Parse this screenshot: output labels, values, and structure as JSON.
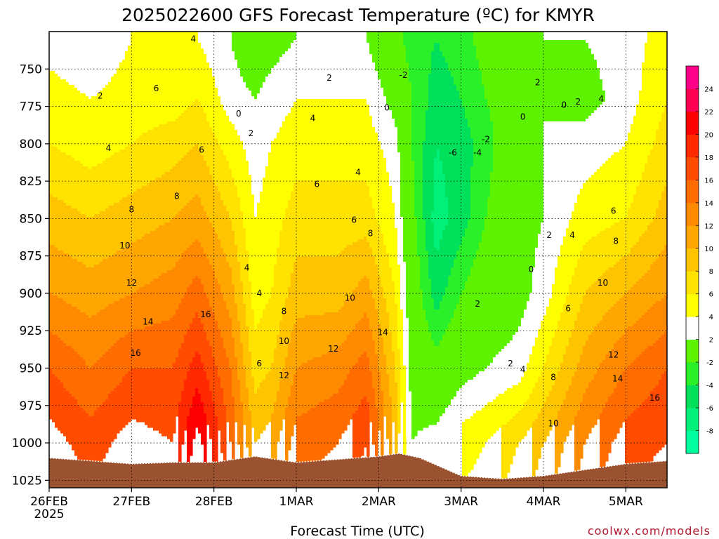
{
  "chart_data": {
    "type": "heatmap",
    "title": "2025022600 GFS Forecast Temperature (ºC) for KMYR",
    "xlabel": "Forecast Time (UTC)",
    "ylabel": "",
    "credit": "coolwx.com/models",
    "x_ticks": [
      {
        "label": "26FEB",
        "sub": "2025",
        "day": 0
      },
      {
        "label": "27FEB",
        "sub": "",
        "day": 1
      },
      {
        "label": "28FEB",
        "sub": "",
        "day": 2
      },
      {
        "label": "1MAR",
        "sub": "",
        "day": 3
      },
      {
        "label": "2MAR",
        "sub": "",
        "day": 4
      },
      {
        "label": "3MAR",
        "sub": "",
        "day": 5
      },
      {
        "label": "4MAR",
        "sub": "",
        "day": 6
      },
      {
        "label": "5MAR",
        "sub": "",
        "day": 7
      }
    ],
    "xlim": [
      0,
      7.5
    ],
    "y_ticks": [
      750,
      775,
      800,
      825,
      850,
      875,
      900,
      925,
      950,
      975,
      1000,
      1025
    ],
    "ylim": [
      1030,
      725
    ],
    "y_scale": "linear-reversed",
    "grid": true,
    "colorbar": {
      "levels": [
        -10,
        -8,
        -6,
        -4,
        -2,
        2,
        4,
        6,
        8,
        10,
        12,
        14,
        16,
        18,
        20,
        22,
        24,
        26
      ],
      "tick_labels": [
        "-8",
        "-6",
        "-4",
        "-2",
        "2",
        "4",
        "6",
        "8",
        "10",
        "12",
        "14",
        "16",
        "18",
        "20",
        "22",
        "24"
      ],
      "colors": [
        "#00ff9e",
        "#00f07a",
        "#00e05a",
        "#29f029",
        "#5cf200",
        "#ffffff",
        "#ffff00",
        "#ffe200",
        "#ffc400",
        "#ffa600",
        "#ff8a00",
        "#ff6c00",
        "#ff4c00",
        "#ff2a00",
        "#ff0000",
        "#ff0052",
        "#ff0088"
      ]
    },
    "ground_color": "#9b5230",
    "ground_pressure": [
      [
        0,
        1010
      ],
      [
        0.5,
        1012
      ],
      [
        1,
        1014
      ],
      [
        1.5,
        1013
      ],
      [
        2,
        1013
      ],
      [
        2.5,
        1009
      ],
      [
        3,
        1013
      ],
      [
        3.5,
        1011
      ],
      [
        4,
        1009
      ],
      [
        4.25,
        1007
      ],
      [
        4.5,
        1010
      ],
      [
        5,
        1022
      ],
      [
        5.25,
        1023
      ],
      [
        5.5,
        1024
      ],
      [
        6,
        1022
      ],
      [
        6.5,
        1018
      ],
      [
        7,
        1014
      ],
      [
        7.5,
        1012
      ]
    ],
    "temperature_profiles": [
      {
        "t": 0.0,
        "points": [
          [
            730,
            3
          ],
          [
            770,
            5
          ],
          [
            800,
            6
          ],
          [
            850,
            9
          ],
          [
            900,
            12
          ],
          [
            950,
            16
          ],
          [
            1000,
            19
          ],
          [
            1030,
            20
          ]
        ]
      },
      {
        "t": 0.5,
        "points": [
          [
            730,
            2
          ],
          [
            770,
            4
          ],
          [
            800,
            5
          ],
          [
            850,
            8
          ],
          [
            900,
            11
          ],
          [
            950,
            14
          ],
          [
            1000,
            17
          ],
          [
            1030,
            18
          ]
        ]
      },
      {
        "t": 1.0,
        "points": [
          [
            730,
            4
          ],
          [
            770,
            5
          ],
          [
            800,
            6
          ],
          [
            850,
            9
          ],
          [
            900,
            12
          ],
          [
            950,
            16
          ],
          [
            1000,
            19
          ],
          [
            1030,
            20
          ]
        ]
      },
      {
        "t": 1.5,
        "points": [
          [
            730,
            4
          ],
          [
            770,
            5
          ],
          [
            800,
            7
          ],
          [
            850,
            10
          ],
          [
            900,
            13
          ],
          [
            950,
            16
          ],
          [
            1000,
            18
          ],
          [
            1030,
            19
          ]
        ]
      },
      {
        "t": 1.8,
        "points": [
          [
            730,
            4
          ],
          [
            770,
            6
          ],
          [
            800,
            8
          ],
          [
            850,
            11
          ],
          [
            900,
            15
          ],
          [
            950,
            19
          ],
          [
            1000,
            23
          ],
          [
            1030,
            24
          ]
        ]
      },
      {
        "t": 2.2,
        "points": [
          [
            730,
            2
          ],
          [
            770,
            3
          ],
          [
            800,
            5
          ],
          [
            850,
            8
          ],
          [
            900,
            11
          ],
          [
            950,
            14
          ],
          [
            1000,
            16
          ],
          [
            1030,
            17
          ]
        ]
      },
      {
        "t": 2.5,
        "points": [
          [
            730,
            0
          ],
          [
            770,
            2
          ],
          [
            800,
            3
          ],
          [
            850,
            4
          ],
          [
            900,
            5
          ],
          [
            950,
            7
          ],
          [
            1000,
            10
          ],
          [
            1030,
            11
          ]
        ]
      },
      {
        "t": 2.7,
        "points": [
          [
            730,
            1
          ],
          [
            770,
            3
          ],
          [
            800,
            4
          ],
          [
            850,
            5
          ],
          [
            900,
            6
          ],
          [
            950,
            8
          ],
          [
            1000,
            11
          ],
          [
            1030,
            12
          ]
        ]
      },
      {
        "t": 3.0,
        "points": [
          [
            730,
            2
          ],
          [
            770,
            4
          ],
          [
            800,
            5
          ],
          [
            850,
            7
          ],
          [
            900,
            9
          ],
          [
            950,
            12
          ],
          [
            1000,
            15
          ],
          [
            1030,
            16
          ]
        ]
      },
      {
        "t": 3.5,
        "points": [
          [
            730,
            3
          ],
          [
            770,
            4
          ],
          [
            800,
            5
          ],
          [
            850,
            7
          ],
          [
            900,
            9
          ],
          [
            950,
            13
          ],
          [
            1000,
            16
          ],
          [
            1030,
            17
          ]
        ]
      },
      {
        "t": 3.85,
        "points": [
          [
            730,
            2
          ],
          [
            770,
            4
          ],
          [
            800,
            5
          ],
          [
            850,
            7
          ],
          [
            900,
            11
          ],
          [
            950,
            15
          ],
          [
            1000,
            18
          ],
          [
            1030,
            19
          ]
        ]
      },
      {
        "t": 4.2,
        "points": [
          [
            730,
            -1
          ],
          [
            770,
            1
          ],
          [
            800,
            3
          ],
          [
            850,
            4
          ],
          [
            900,
            6
          ],
          [
            950,
            8
          ],
          [
            1000,
            10
          ],
          [
            1030,
            11
          ]
        ]
      },
      {
        "t": 4.4,
        "points": [
          [
            730,
            -3
          ],
          [
            770,
            -2
          ],
          [
            800,
            -2
          ],
          [
            850,
            -1
          ],
          [
            900,
            0
          ],
          [
            950,
            1
          ],
          [
            1000,
            2
          ],
          [
            1030,
            3
          ]
        ]
      },
      {
        "t": 4.7,
        "points": [
          [
            730,
            -4
          ],
          [
            770,
            -5
          ],
          [
            800,
            -6
          ],
          [
            850,
            -7
          ],
          [
            900,
            -5
          ],
          [
            950,
            -1
          ],
          [
            1000,
            3
          ],
          [
            1030,
            4
          ]
        ]
      },
      {
        "t": 5.0,
        "points": [
          [
            730,
            -3
          ],
          [
            770,
            -4
          ],
          [
            800,
            -5
          ],
          [
            850,
            -5
          ],
          [
            900,
            -2
          ],
          [
            950,
            1
          ],
          [
            1000,
            5
          ],
          [
            1030,
            6
          ]
        ]
      },
      {
        "t": 5.3,
        "points": [
          [
            730,
            -1
          ],
          [
            770,
            -2
          ],
          [
            800,
            -3
          ],
          [
            850,
            -2
          ],
          [
            900,
            0
          ],
          [
            950,
            2
          ],
          [
            1000,
            6
          ],
          [
            1030,
            7
          ]
        ]
      },
      {
        "t": 5.7,
        "points": [
          [
            730,
            1
          ],
          [
            770,
            0
          ],
          [
            800,
            1
          ],
          [
            850,
            1
          ],
          [
            900,
            1
          ],
          [
            950,
            3
          ],
          [
            1000,
            8
          ],
          [
            1030,
            9
          ]
        ]
      },
      {
        "t": 6.0,
        "points": [
          [
            730,
            2
          ],
          [
            770,
            2
          ],
          [
            800,
            2
          ],
          [
            850,
            2
          ],
          [
            900,
            3
          ],
          [
            950,
            6
          ],
          [
            1000,
            10
          ],
          [
            1030,
            11
          ]
        ]
      },
      {
        "t": 6.5,
        "points": [
          [
            730,
            2
          ],
          [
            770,
            1
          ],
          [
            800,
            3
          ],
          [
            850,
            5
          ],
          [
            900,
            8
          ],
          [
            950,
            11
          ],
          [
            1000,
            14
          ],
          [
            1030,
            15
          ]
        ]
      },
      {
        "t": 7.0,
        "points": [
          [
            730,
            3
          ],
          [
            770,
            3
          ],
          [
            800,
            4
          ],
          [
            850,
            6
          ],
          [
            900,
            10
          ],
          [
            950,
            14
          ],
          [
            1000,
            17
          ],
          [
            1030,
            18
          ]
        ]
      },
      {
        "t": 7.5,
        "points": [
          [
            730,
            5
          ],
          [
            770,
            6
          ],
          [
            800,
            7
          ],
          [
            850,
            9
          ],
          [
            900,
            12
          ],
          [
            950,
            16
          ],
          [
            1000,
            18
          ],
          [
            1030,
            19
          ]
        ]
      }
    ],
    "contour_labels": [
      {
        "text": "2",
        "t": 0.62,
        "p": 768
      },
      {
        "text": "4",
        "t": 0.72,
        "p": 803
      },
      {
        "text": "6",
        "t": 1.3,
        "p": 763
      },
      {
        "text": "4",
        "t": 1.75,
        "p": 730
      },
      {
        "text": "6",
        "t": 1.85,
        "p": 804
      },
      {
        "text": "8",
        "t": 1.55,
        "p": 835
      },
      {
        "text": "8",
        "t": 1.0,
        "p": 844
      },
      {
        "text": "10",
        "t": 0.92,
        "p": 868
      },
      {
        "text": "12",
        "t": 1.0,
        "p": 893
      },
      {
        "text": "14",
        "t": 1.2,
        "p": 919
      },
      {
        "text": "16",
        "t": 1.05,
        "p": 940
      },
      {
        "text": "16",
        "t": 1.9,
        "p": 914
      },
      {
        "text": "0",
        "t": 2.3,
        "p": 780
      },
      {
        "text": "2",
        "t": 2.45,
        "p": 793
      },
      {
        "text": "4",
        "t": 3.2,
        "p": 783
      },
      {
        "text": "2",
        "t": 3.4,
        "p": 756
      },
      {
        "text": "4",
        "t": 3.75,
        "p": 819
      },
      {
        "text": "6",
        "t": 3.25,
        "p": 827
      },
      {
        "text": "6",
        "t": 3.7,
        "p": 851
      },
      {
        "text": "8",
        "t": 3.9,
        "p": 860
      },
      {
        "text": "4",
        "t": 2.4,
        "p": 883
      },
      {
        "text": "4",
        "t": 2.55,
        "p": 900
      },
      {
        "text": "6",
        "t": 2.55,
        "p": 947
      },
      {
        "text": "8",
        "t": 2.85,
        "p": 912
      },
      {
        "text": "10",
        "t": 2.85,
        "p": 932
      },
      {
        "text": "12",
        "t": 2.85,
        "p": 955
      },
      {
        "text": "10",
        "t": 3.65,
        "p": 903
      },
      {
        "text": "12",
        "t": 3.45,
        "p": 937
      },
      {
        "text": "14",
        "t": 4.05,
        "p": 926
      },
      {
        "text": "0",
        "t": 4.1,
        "p": 776
      },
      {
        "text": "-2",
        "t": 4.3,
        "p": 754
      },
      {
        "text": "-6",
        "t": 4.9,
        "p": 806
      },
      {
        "text": "-4",
        "t": 5.2,
        "p": 806
      },
      {
        "text": "-2",
        "t": 5.3,
        "p": 797
      },
      {
        "text": "2",
        "t": 5.2,
        "p": 907
      },
      {
        "text": "0",
        "t": 5.75,
        "p": 782
      },
      {
        "text": "2",
        "t": 5.93,
        "p": 759
      },
      {
        "text": "0",
        "t": 6.25,
        "p": 774
      },
      {
        "text": "2",
        "t": 6.42,
        "p": 772
      },
      {
        "text": "4",
        "t": 6.7,
        "p": 770
      },
      {
        "text": "0",
        "t": 5.85,
        "p": 884
      },
      {
        "text": "2",
        "t": 6.07,
        "p": 861
      },
      {
        "text": "4",
        "t": 6.35,
        "p": 861
      },
      {
        "text": "6",
        "t": 6.85,
        "p": 845
      },
      {
        "text": "8",
        "t": 6.88,
        "p": 865
      },
      {
        "text": "10",
        "t": 6.72,
        "p": 893
      },
      {
        "text": "6",
        "t": 6.3,
        "p": 910
      },
      {
        "text": "8",
        "t": 6.12,
        "p": 956
      },
      {
        "text": "10",
        "t": 6.12,
        "p": 987
      },
      {
        "text": "12",
        "t": 6.85,
        "p": 941
      },
      {
        "text": "14",
        "t": 6.9,
        "p": 957
      },
      {
        "text": "16",
        "t": 7.35,
        "p": 970
      },
      {
        "text": "2",
        "t": 5.6,
        "p": 947
      },
      {
        "text": "4",
        "t": 5.75,
        "p": 951
      }
    ]
  }
}
